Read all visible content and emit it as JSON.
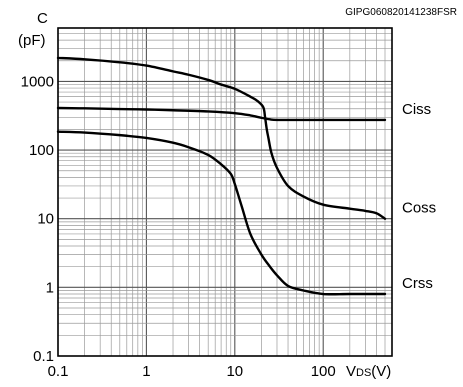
{
  "figure_code": "GIPG060820141238FSR",
  "chart_data": {
    "type": "line",
    "xscale": "log",
    "yscale": "log",
    "xlim": [
      0.1,
      600
    ],
    "ylim": [
      0.1,
      6000
    ],
    "grid": true,
    "ylabel_line1": "C",
    "ylabel_line2": "(pF)",
    "xlabel_main": "V",
    "xlabel_sub": "DS",
    "xlabel_unit": "(V)",
    "xtick_labels": [
      "0.1",
      "1",
      "10",
      "100"
    ],
    "xtick_values": [
      0.1,
      1,
      10,
      100
    ],
    "ytick_labels": [
      "0.1",
      "1",
      "10",
      "100",
      "1000"
    ],
    "ytick_values": [
      0.1,
      1,
      10,
      100,
      1000
    ],
    "series": [
      {
        "name": "Ciss",
        "color": "#000000",
        "x": [
          0.1,
          0.2,
          0.5,
          1,
          2,
          5,
          10,
          15,
          20,
          25,
          30,
          50,
          100,
          200,
          500
        ],
        "y": [
          410,
          405,
          395,
          390,
          380,
          365,
          345,
          320,
          295,
          280,
          275,
          275,
          275,
          275,
          275
        ]
      },
      {
        "name": "Coss",
        "color": "#000000",
        "x": [
          0.1,
          0.2,
          0.5,
          1,
          2,
          3,
          5,
          7,
          10,
          15,
          18,
          21,
          22,
          23,
          24,
          26,
          30,
          40,
          60,
          100,
          200,
          300,
          400,
          500
        ],
        "y": [
          2200,
          2100,
          1900,
          1700,
          1400,
          1250,
          1050,
          900,
          780,
          600,
          520,
          420,
          300,
          200,
          150,
          90,
          55,
          30,
          21,
          16,
          14,
          13,
          12,
          10
        ]
      },
      {
        "name": "Crss",
        "color": "#000000",
        "x": [
          0.1,
          0.2,
          0.5,
          1,
          2,
          3,
          5,
          7,
          9,
          10,
          12,
          15,
          20,
          25,
          30,
          40,
          60,
          100,
          200,
          500
        ],
        "y": [
          185,
          180,
          165,
          150,
          128,
          110,
          85,
          62,
          45,
          32,
          15,
          6,
          3,
          2,
          1.5,
          1.05,
          0.9,
          0.8,
          0.8,
          0.8
        ]
      }
    ]
  }
}
